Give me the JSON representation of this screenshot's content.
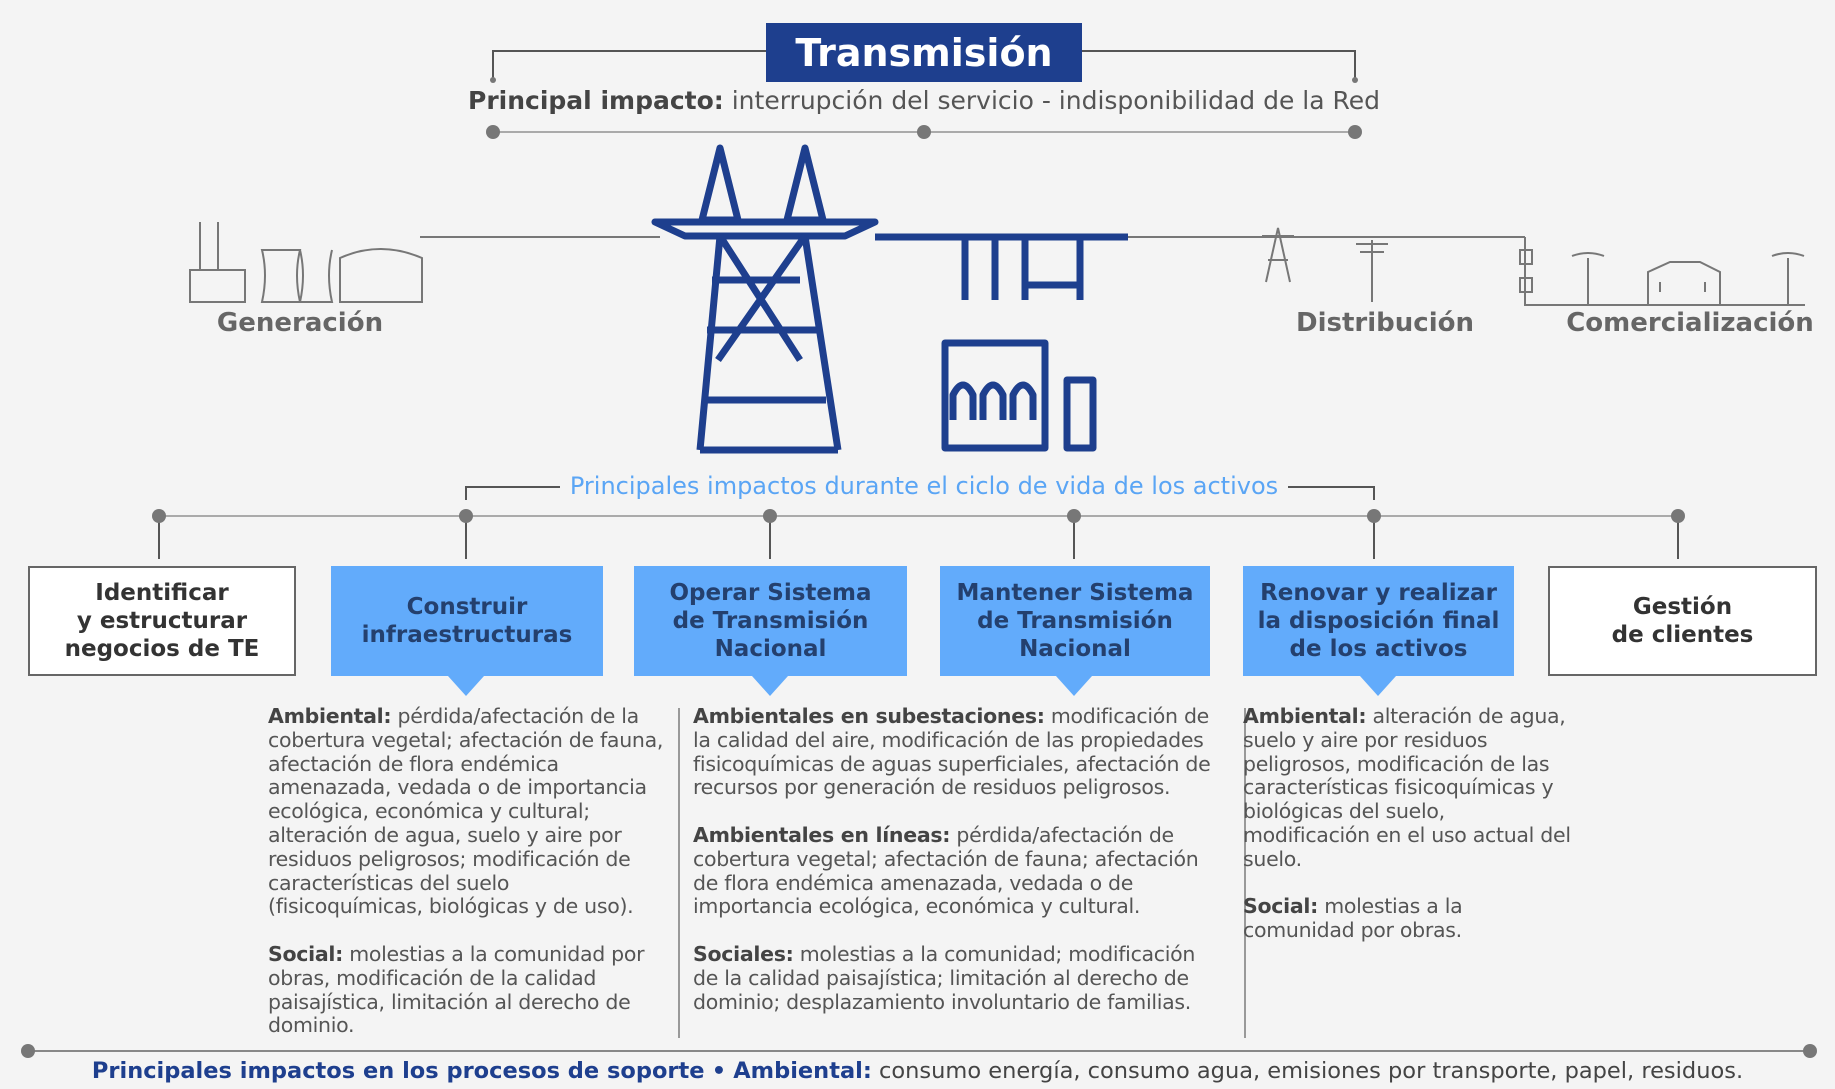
{
  "title": "Transmisión",
  "main_impact": {
    "label": "Principal impacto:",
    "text": "interrupción del servicio - indisponibilidad de la Red"
  },
  "segments": {
    "generation": "Generación",
    "distribution": "Distribución",
    "commercialization": "Comercialización"
  },
  "lifecycle_title": "Principales impactos durante el ciclo de vida de los activos",
  "stages": [
    [
      "Identificar",
      "y estructurar",
      "negocios de TE"
    ],
    [
      "Construir",
      "infraestructuras"
    ],
    [
      "Operar Sistema",
      "de Transmisión",
      "Nacional"
    ],
    [
      "Mantener Sistema",
      "de Transmisión",
      "Nacional"
    ],
    [
      "Renovar y realizar",
      "la disposición final",
      "de los activos"
    ],
    [
      "Gestión",
      "de clientes"
    ]
  ],
  "impacts": [
    [
      {
        "label": "Ambiental:",
        "text": "pérdida/afectación de la cobertura vegetal; afectación de fauna, afectación de flora endémica amenazada, vedada o de importancia ecológica, económica y cultural; alteración de agua, suelo y aire por residuos peligrosos; modificación de características del suelo (fisicoquímicas, biológicas y de uso)."
      },
      {
        "label": "Social:",
        "text": "molestias a la comunidad por obras, modificación de la calidad paisajística, limitación al derecho de dominio."
      }
    ],
    [
      {
        "label": "Ambientales en subestaciones:",
        "text": "modificación de la calidad del aire, modificación de las propiedades fisicoquímicas de aguas superficiales, afectación de recursos por generación de residuos peligrosos."
      },
      {
        "label": "Ambientales en líneas:",
        "text": "pérdida/afectación de cobertura vegetal; afectación de fauna; afectación de flora endémica amenazada, vedada o de importancia ecológica, económica y cultural."
      },
      {
        "label": "Sociales:",
        "text": "molestias a la comunidad; modificación de la calidad paisajística; limitación al derecho de dominio; desplazamiento involuntario de familias."
      }
    ],
    [
      {
        "label": "Ambiental:",
        "text": "alteración de agua, suelo y aire por residuos peligrosos, modificación de las características fisicoquímicas y biológicas del suelo, modificación en el uso actual del suelo."
      },
      {
        "label": "Social:",
        "text": "molestias a la comunidad por obras."
      }
    ]
  ],
  "footer": {
    "title": "Principales impactos en los procesos de soporte",
    "separator": "•",
    "label": "Ambiental:",
    "text": "consumo energía, consumo agua, emisiones por transporte, papel, residuos."
  }
}
